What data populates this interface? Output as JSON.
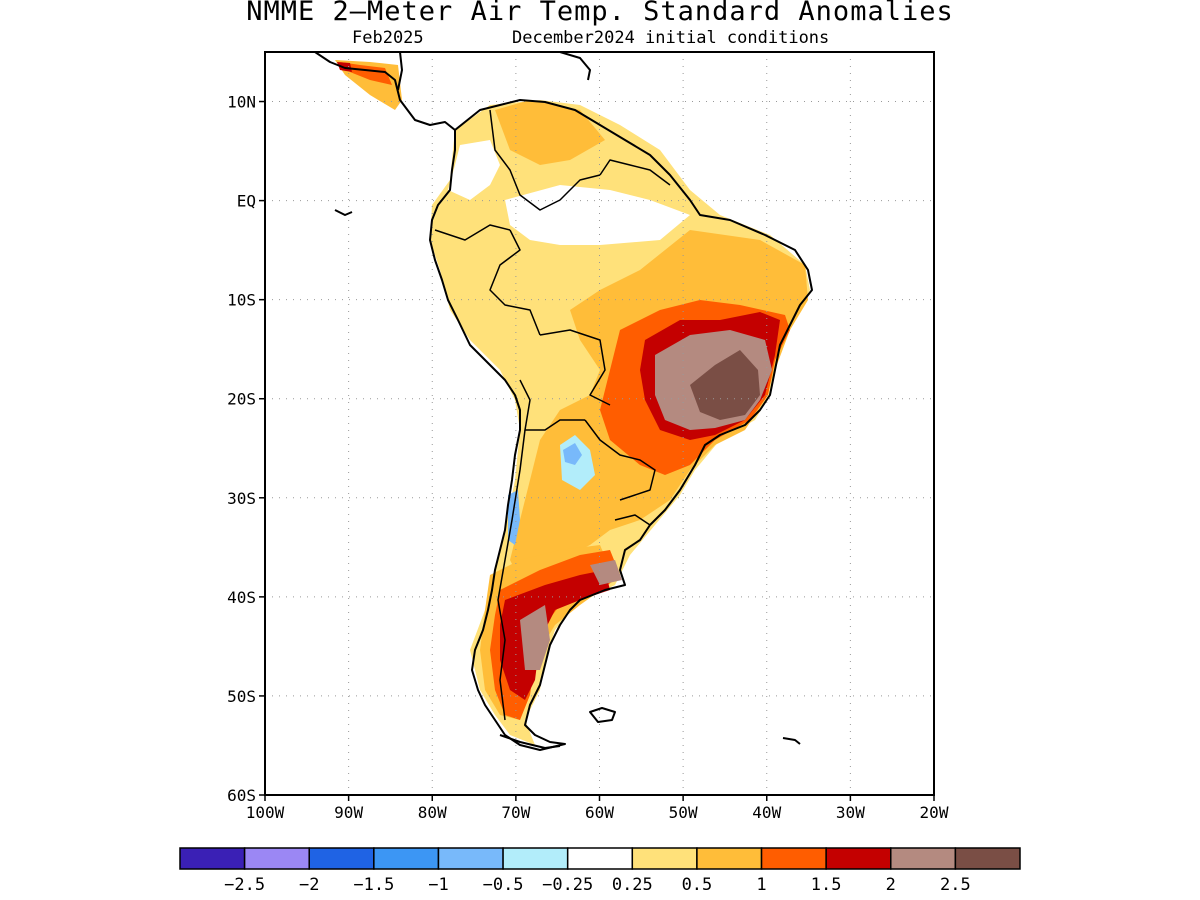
{
  "title": "NMME 2—Meter Air Temp. Standard Anomalies",
  "subtitle_left": "Feb2025",
  "subtitle_right": "December2024 initial conditions",
  "map": {
    "lon_range": [
      -100,
      -20
    ],
    "lat_range": [
      -60,
      15
    ],
    "lat_labels": [
      {
        "value": 10,
        "text": "10N"
      },
      {
        "value": 0,
        "text": "EQ"
      },
      {
        "value": -10,
        "text": "10S"
      },
      {
        "value": -20,
        "text": "20S"
      },
      {
        "value": -30,
        "text": "30S"
      },
      {
        "value": -40,
        "text": "40S"
      },
      {
        "value": -50,
        "text": "50S"
      },
      {
        "value": -60,
        "text": "60S"
      }
    ],
    "lon_labels": [
      {
        "value": -100,
        "text": "100W"
      },
      {
        "value": -90,
        "text": "90W"
      },
      {
        "value": -80,
        "text": "80W"
      },
      {
        "value": -70,
        "text": "70W"
      },
      {
        "value": -60,
        "text": "60W"
      },
      {
        "value": -50,
        "text": "50W"
      },
      {
        "value": -40,
        "text": "40W"
      },
      {
        "value": -30,
        "text": "30W"
      },
      {
        "value": -20,
        "text": "20W"
      }
    ]
  },
  "colorbar": {
    "colors": [
      "#3a20b5",
      "#9b87f4",
      "#1f63e4",
      "#3c96f4",
      "#78b9fa",
      "#b2edfa",
      "#ffffff",
      "#ffe17a",
      "#ffbd39",
      "#ff5d00",
      "#c40000",
      "#b48a80",
      "#7a4e45"
    ],
    "labels": [
      "−2.5",
      "−2",
      "−1.5",
      "−1",
      "−0.5",
      "−0.25",
      "0.25",
      "0.5",
      "1",
      "1.5",
      "2",
      "2.5"
    ]
  }
}
